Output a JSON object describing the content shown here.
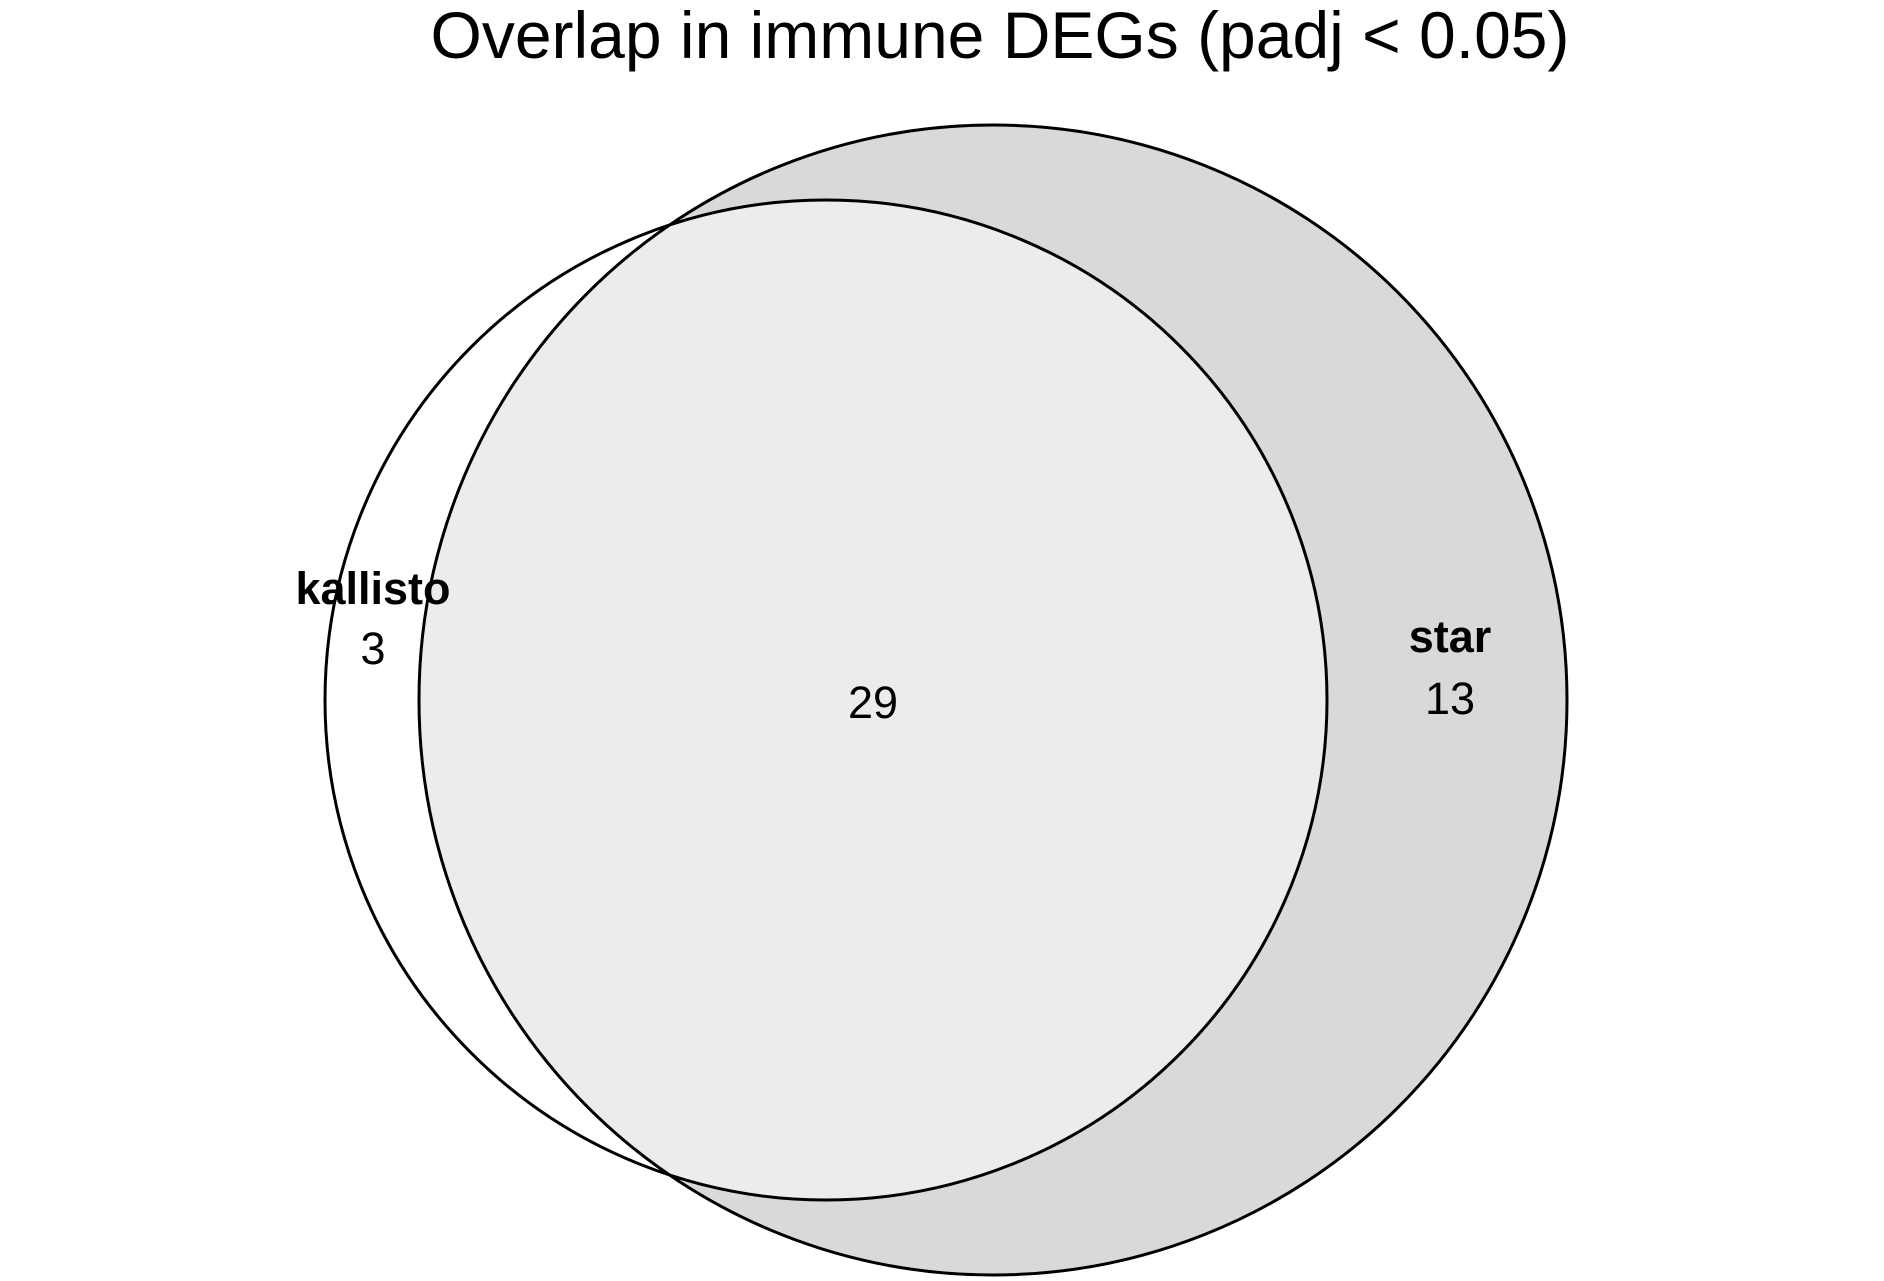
{
  "title": "Overlap in immune DEGs (padj < 0.05)",
  "sets": {
    "kallisto": {
      "label": "kallisto",
      "only_count": "3"
    },
    "star": {
      "label": "star",
      "only_count": "13"
    }
  },
  "intersection": {
    "count": "29"
  },
  "colors": {
    "kallisto_only": "#ffffff",
    "star_only": "#d9d9d9",
    "intersection": "#ececec",
    "outline": "#000000",
    "background": "#ffffff"
  }
}
